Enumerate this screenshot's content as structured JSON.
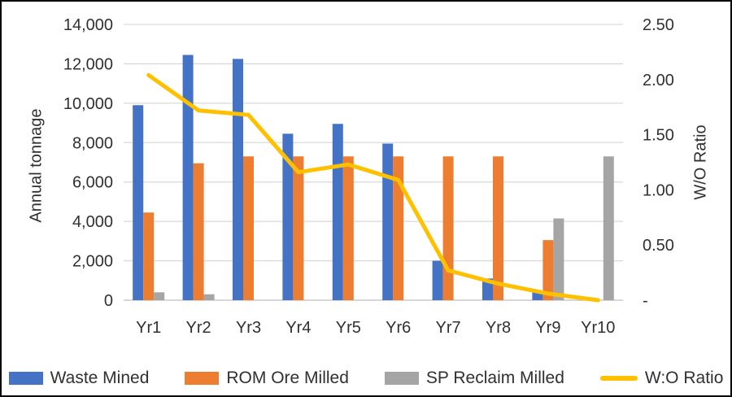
{
  "chart_data": {
    "type": "bar",
    "title": "",
    "categories": [
      "Yr1",
      "Yr2",
      "Yr3",
      "Yr4",
      "Yr5",
      "Yr6",
      "Yr7",
      "Yr8",
      "Yr9",
      "Yr10"
    ],
    "left_axis": {
      "title": "Annual tonnage",
      "min": 0,
      "max": 14000,
      "step": 2000,
      "tick_labels": [
        "0",
        "2,000",
        "4,000",
        "6,000",
        "8,000",
        "10,000",
        "12,000",
        "14,000"
      ]
    },
    "right_axis": {
      "title": "W/O Ratio",
      "min": 0,
      "max": 2.5,
      "step": 0.5,
      "tick_labels": [
        "-",
        "0.50",
        "1.00",
        "1.50",
        "2.00",
        "2.50"
      ]
    },
    "series": [
      {
        "name": "Waste Mined",
        "type": "bar",
        "axis": "left",
        "color": "#4472C4",
        "values": [
          9900,
          12450,
          12250,
          8450,
          8950,
          7950,
          2000,
          1100,
          450,
          0
        ]
      },
      {
        "name": "ROM Ore Milled",
        "type": "bar",
        "axis": "left",
        "color": "#ED7D31",
        "values": [
          4450,
          6950,
          7300,
          7300,
          7300,
          7300,
          7300,
          7300,
          3050,
          0
        ]
      },
      {
        "name": "SP Reclaim Milled",
        "type": "bar",
        "axis": "left",
        "color": "#A5A5A5",
        "values": [
          400,
          300,
          0,
          0,
          0,
          0,
          0,
          0,
          4150,
          7300
        ]
      },
      {
        "name": "W:O Ratio",
        "type": "line",
        "axis": "right",
        "color": "#FFC000",
        "values": [
          2.04,
          1.72,
          1.68,
          1.16,
          1.23,
          1.09,
          0.27,
          0.15,
          0.06,
          0
        ]
      }
    ],
    "grid": true,
    "legend_position": "bottom",
    "colors": {
      "grid": "#D9D9D9",
      "baseline": "#BFBFBF",
      "text": "#303030",
      "background": "#FFFFFF",
      "border": "#000000"
    }
  }
}
